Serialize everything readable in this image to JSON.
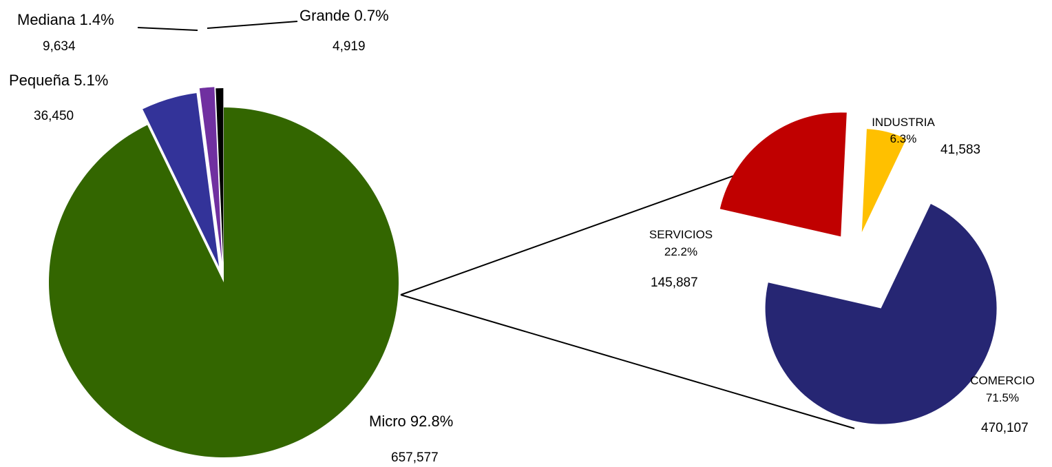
{
  "chart_data": [
    {
      "type": "pie",
      "slices": [
        {
          "label": "Micro 92.8%",
          "value": 657577,
          "value_label": "657,577",
          "color": "#336600"
        },
        {
          "label": "Pequeña 5.1%",
          "value": 36450,
          "value_label": "36,450",
          "color": "#333399"
        },
        {
          "label": "Mediana 1.4%",
          "value": 9634,
          "value_label": "9,634",
          "color": "#7030A0"
        },
        {
          "label": "Grande 0.7%",
          "value": 4919,
          "value_label": "4,919",
          "color": "#000000"
        }
      ]
    },
    {
      "type": "pie",
      "slices": [
        {
          "label": "COMERCIO",
          "percent_label": "71.5%",
          "value": 470107,
          "value_label": "470,107",
          "color": "#262673"
        },
        {
          "label": "SERVICIOS",
          "percent_label": "22.2%",
          "value": 145887,
          "value_label": "145,887",
          "color": "#C00000"
        },
        {
          "label": "INDUSTRIA",
          "percent_label": "6.3%",
          "value": 41583,
          "value_label": "41,583",
          "color": "#FFC000"
        }
      ]
    }
  ]
}
